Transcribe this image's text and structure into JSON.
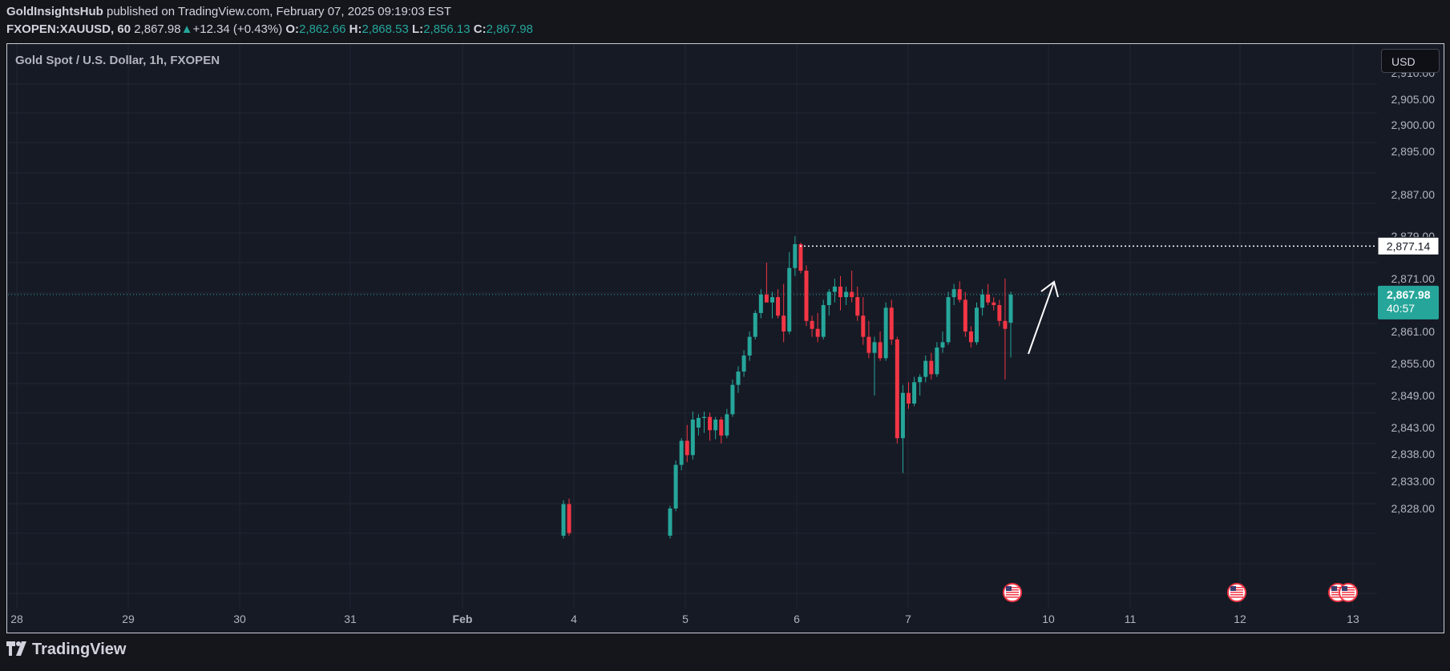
{
  "header": {
    "author": "GoldInsightsHub",
    "published": "published on TradingView.com, February 07, 2025 09:19:03 EST",
    "symbol": "FXOPEN:XAUUSD, 60",
    "last": "2,867.98",
    "change_arrow": "▲",
    "change": "+12.34 (+0.43%)",
    "o_label": "O:",
    "o": "2,862.66",
    "h_label": "H:",
    "h": "2,868.53",
    "l_label": "L:",
    "l": "2,856.13",
    "c_label": "C:",
    "c": "2,867.98"
  },
  "chart_title": "Gold Spot / U.S. Dollar, 1h, FXOPEN",
  "currency_button": "USD",
  "footer": {
    "brand": "TradingView"
  },
  "colors": {
    "up": "#26a69a",
    "down": "#f23645",
    "background": "#161a25",
    "grid": "#232632"
  },
  "chart_data": {
    "type": "candlestick",
    "title": "Gold Spot / U.S. Dollar, 1h, FXOPEN",
    "y_ticks": [
      "2,910.00",
      "2,905.00",
      "2,900.00",
      "2,895.00",
      "2,887.00",
      "2,879.00",
      "2,871.00",
      "2,861.00",
      "2,855.00",
      "2,849.00",
      "2,843.00",
      "2,838.00",
      "2,833.00",
      "2,828.00"
    ],
    "x_ticks": [
      "28",
      "29",
      "30",
      "31",
      "Feb",
      "4",
      "5",
      "6",
      "7",
      "10",
      "11",
      "12",
      "13"
    ],
    "resistance_level": 2877.14,
    "resistance_label": "2,877.14",
    "last_price": 2867.98,
    "last_price_label": "2,867.98",
    "countdown": "40:57",
    "event_flags": 4,
    "candles": [
      [
        2823.0,
        2829.5,
        2822.5,
        2828.8
      ],
      [
        2828.8,
        2829.8,
        2823.0,
        2823.5
      ],
      [
        2823.0,
        2828.5,
        2822.5,
        2828.0
      ],
      [
        2828.0,
        2836.8,
        2827.5,
        2836.0
      ],
      [
        2836.0,
        2841.0,
        2835.0,
        2840.5
      ],
      [
        2840.5,
        2843.5,
        2836.5,
        2837.8
      ],
      [
        2837.8,
        2846.0,
        2837.0,
        2844.5
      ],
      [
        2843.0,
        2845.5,
        2841.5,
        2844.8
      ],
      [
        2844.8,
        2846.0,
        2842.0,
        2845.0
      ],
      [
        2845.0,
        2845.8,
        2840.5,
        2842.5
      ],
      [
        2842.5,
        2845.0,
        2840.8,
        2844.5
      ],
      [
        2844.5,
        2845.0,
        2840.0,
        2841.5
      ],
      [
        2841.5,
        2846.5,
        2841.0,
        2845.5
      ],
      [
        2845.5,
        2852.0,
        2845.0,
        2851.0
      ],
      [
        2851.0,
        2854.5,
        2849.5,
        2853.5
      ],
      [
        2853.5,
        2857.5,
        2852.5,
        2856.5
      ],
      [
        2856.5,
        2861.0,
        2855.5,
        2860.0
      ],
      [
        2860.0,
        2865.0,
        2859.5,
        2864.5
      ],
      [
        2864.5,
        2869.0,
        2863.5,
        2868.0
      ],
      [
        2868.0,
        2874.0,
        2866.5,
        2866.5
      ],
      [
        2866.5,
        2868.5,
        2863.5,
        2867.5
      ],
      [
        2867.5,
        2869.0,
        2863.5,
        2864.0
      ],
      [
        2864.0,
        2870.0,
        2859.0,
        2861.0
      ],
      [
        2861.0,
        2876.0,
        2860.5,
        2873.0
      ],
      [
        2873.0,
        2879.0,
        2871.5,
        2877.5
      ],
      [
        2877.5,
        2877.8,
        2872.0,
        2872.5
      ],
      [
        2872.5,
        2873.5,
        2862.0,
        2863.0
      ],
      [
        2863.0,
        2864.0,
        2860.0,
        2861.5
      ],
      [
        2861.5,
        2864.5,
        2859.0,
        2860.0
      ],
      [
        2860.0,
        2867.0,
        2859.5,
        2866.0
      ],
      [
        2866.0,
        2869.0,
        2864.0,
        2868.5
      ],
      [
        2868.5,
        2871.0,
        2866.5,
        2869.5
      ],
      [
        2869.5,
        2871.5,
        2865.0,
        2867.5
      ],
      [
        2867.5,
        2869.5,
        2866.0,
        2868.5
      ],
      [
        2868.5,
        2872.5,
        2866.5,
        2867.5
      ],
      [
        2867.5,
        2869.5,
        2863.0,
        2864.0
      ],
      [
        2864.0,
        2867.5,
        2858.5,
        2860.0
      ],
      [
        2860.0,
        2863.0,
        2856.0,
        2857.0
      ],
      [
        2857.0,
        2860.0,
        2849.0,
        2859.0
      ],
      [
        2859.0,
        2861.0,
        2855.5,
        2856.0
      ],
      [
        2856.0,
        2866.5,
        2855.5,
        2865.5
      ],
      [
        2865.5,
        2867.0,
        2858.5,
        2859.5
      ],
      [
        2859.5,
        2860.0,
        2840.0,
        2841.0
      ],
      [
        2841.0,
        2851.0,
        2834.5,
        2849.5
      ],
      [
        2849.5,
        2851.5,
        2846.5,
        2847.5
      ],
      [
        2847.5,
        2852.5,
        2847.0,
        2851.5
      ],
      [
        2851.5,
        2853.0,
        2849.0,
        2852.5
      ],
      [
        2852.5,
        2856.5,
        2851.5,
        2855.5
      ],
      [
        2855.5,
        2857.0,
        2852.0,
        2853.0
      ],
      [
        2853.0,
        2859.0,
        2852.5,
        2858.0
      ],
      [
        2858.0,
        2861.0,
        2857.0,
        2859.0
      ],
      [
        2859.0,
        2868.5,
        2858.5,
        2867.5
      ],
      [
        2867.5,
        2870.0,
        2866.0,
        2869.0
      ],
      [
        2869.0,
        2870.5,
        2866.5,
        2867.0
      ],
      [
        2867.0,
        2868.5,
        2860.0,
        2861.0
      ],
      [
        2861.0,
        2862.0,
        2858.0,
        2859.0
      ],
      [
        2859.0,
        2866.5,
        2858.5,
        2865.5
      ],
      [
        2865.5,
        2869.0,
        2864.0,
        2868.0
      ],
      [
        2868.0,
        2870.0,
        2866.0,
        2866.5
      ],
      [
        2866.5,
        2867.5,
        2865.0,
        2866.0
      ],
      [
        2866.0,
        2867.0,
        2862.0,
        2863.0
      ],
      [
        2863.0,
        2871.0,
        2852.0,
        2861.5
      ],
      [
        2862.66,
        2868.53,
        2856.13,
        2867.98
      ]
    ]
  }
}
